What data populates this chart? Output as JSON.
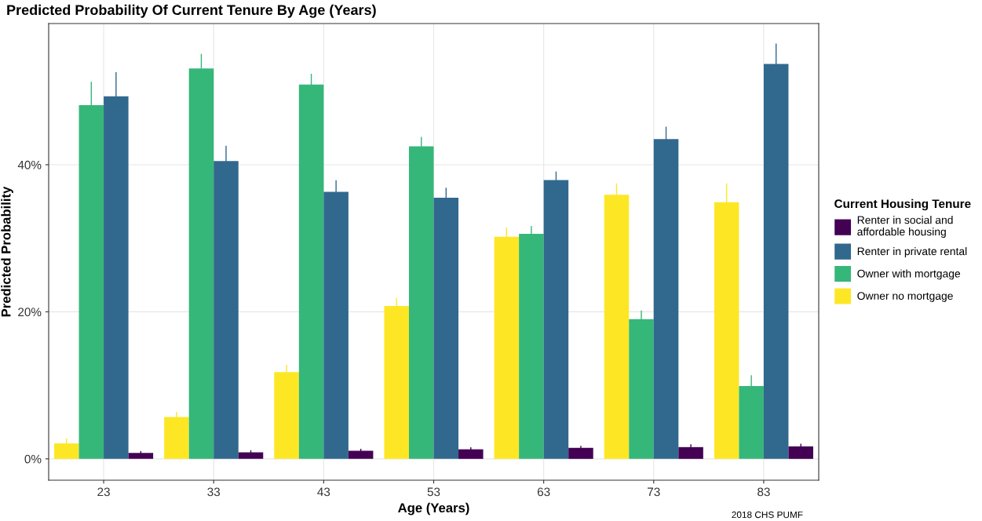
{
  "chart_data": {
    "type": "bar",
    "title": "Predicted Probability Of Current Tenure By Age (Years)",
    "xlabel": "Age (Years)",
    "ylabel": "Predicted Probability",
    "legend_title": "Current Housing Tenure",
    "categories": [
      "23",
      "33",
      "43",
      "53",
      "63",
      "73",
      "83"
    ],
    "series": [
      {
        "name": "Owner no mortgage",
        "color": "#fde725",
        "values": [
          2.1,
          5.7,
          11.8,
          20.8,
          30.2,
          35.9,
          34.9
        ],
        "errors": [
          [
            2.1,
            2.7
          ],
          [
            5.7,
            6.3
          ],
          [
            11.8,
            12.7
          ],
          [
            20.8,
            21.8
          ],
          [
            30.2,
            31.4
          ],
          [
            35.9,
            37.4
          ],
          [
            34.9,
            37.4
          ]
        ]
      },
      {
        "name": "Owner with mortgage",
        "color": "#35b779",
        "values": [
          48.1,
          53.1,
          50.9,
          42.5,
          30.6,
          19.0,
          9.9
        ],
        "errors": [
          [
            48.1,
            51.2
          ],
          [
            53.1,
            55.0
          ],
          [
            50.9,
            52.3
          ],
          [
            42.5,
            43.7
          ],
          [
            30.6,
            31.6
          ],
          [
            19.0,
            20.1
          ],
          [
            9.9,
            11.3
          ]
        ]
      },
      {
        "name": "Renter in private rental",
        "color": "#31688e",
        "values": [
          49.3,
          40.5,
          36.3,
          35.5,
          37.9,
          43.5,
          53.7
        ],
        "errors": [
          [
            49.3,
            52.5
          ],
          [
            40.5,
            42.5
          ],
          [
            36.3,
            37.8
          ],
          [
            35.5,
            36.8
          ],
          [
            37.9,
            39.0
          ],
          [
            43.5,
            45.1
          ],
          [
            53.7,
            56.4
          ]
        ]
      },
      {
        "name": "Renter in social and\naffordable housing",
        "color": "#440154",
        "values": [
          0.8,
          0.9,
          1.1,
          1.3,
          1.5,
          1.6,
          1.7
        ],
        "errors": [
          [
            0.8,
            1.0
          ],
          [
            0.9,
            1.1
          ],
          [
            1.1,
            1.3
          ],
          [
            1.3,
            1.5
          ],
          [
            1.5,
            1.7
          ],
          [
            1.6,
            1.9
          ],
          [
            1.7,
            2.0
          ]
        ]
      }
    ],
    "ylim": [
      -2.9,
      59.2
    ],
    "yticks": [
      {
        "value": 0,
        "label": "0%"
      },
      {
        "value": 20,
        "label": "20%"
      },
      {
        "value": 40,
        "label": "40%"
      }
    ],
    "grid": true,
    "legend": "right",
    "annotations": [
      "2018 CHS PUMF"
    ]
  }
}
